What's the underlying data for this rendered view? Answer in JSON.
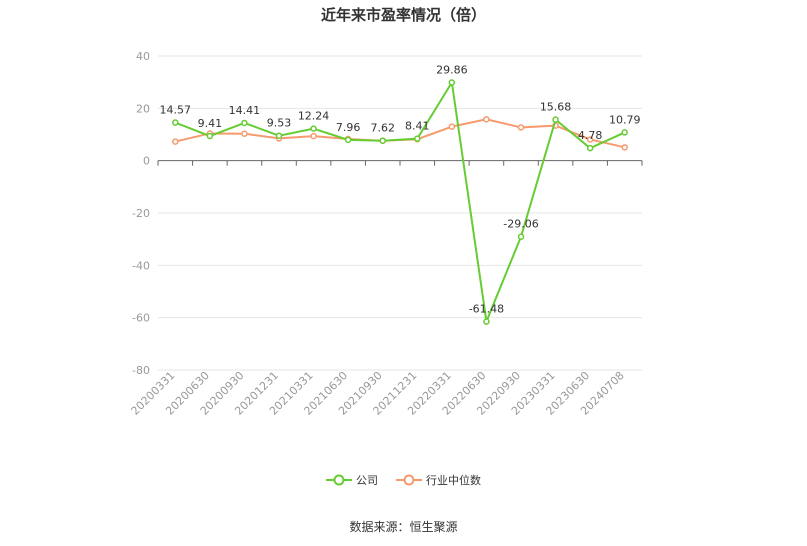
{
  "chart_data": {
    "type": "line",
    "title": "近年来市盈率情况（倍）",
    "categories": [
      "20200331",
      "20200630",
      "20200930",
      "20201231",
      "20210331",
      "20210630",
      "20210930",
      "20211231",
      "20220331",
      "20220630",
      "20220930",
      "20230331",
      "20230630",
      "20240708"
    ],
    "series": [
      {
        "name": "公司",
        "color": "#66cc33",
        "values": [
          14.57,
          9.41,
          14.41,
          9.53,
          12.24,
          7.96,
          7.62,
          8.41,
          29.86,
          -61.48,
          -29.06,
          15.68,
          4.78,
          10.79
        ],
        "labels": [
          "14.57",
          "9.41",
          "14.41",
          "9.53",
          "12.24",
          "7.96",
          "7.62",
          "8.41",
          "29.86",
          "-61.48",
          "-29.06",
          "15.68",
          "4.78",
          "10.79"
        ]
      },
      {
        "name": "行业中位数",
        "color": "#f59b6e",
        "values": [
          7.3,
          10.4,
          10.3,
          8.5,
          9.4,
          8.3,
          7.6,
          8.2,
          13.0,
          15.8,
          12.7,
          13.4,
          8.1,
          5.1
        ]
      }
    ],
    "ylim": [
      -80,
      40
    ],
    "yticks": [
      "40",
      "20",
      "0",
      "-20",
      "-40",
      "-60",
      "-80"
    ],
    "grid": true,
    "legend_position": "bottom"
  },
  "source": "数据来源：恒生聚源"
}
